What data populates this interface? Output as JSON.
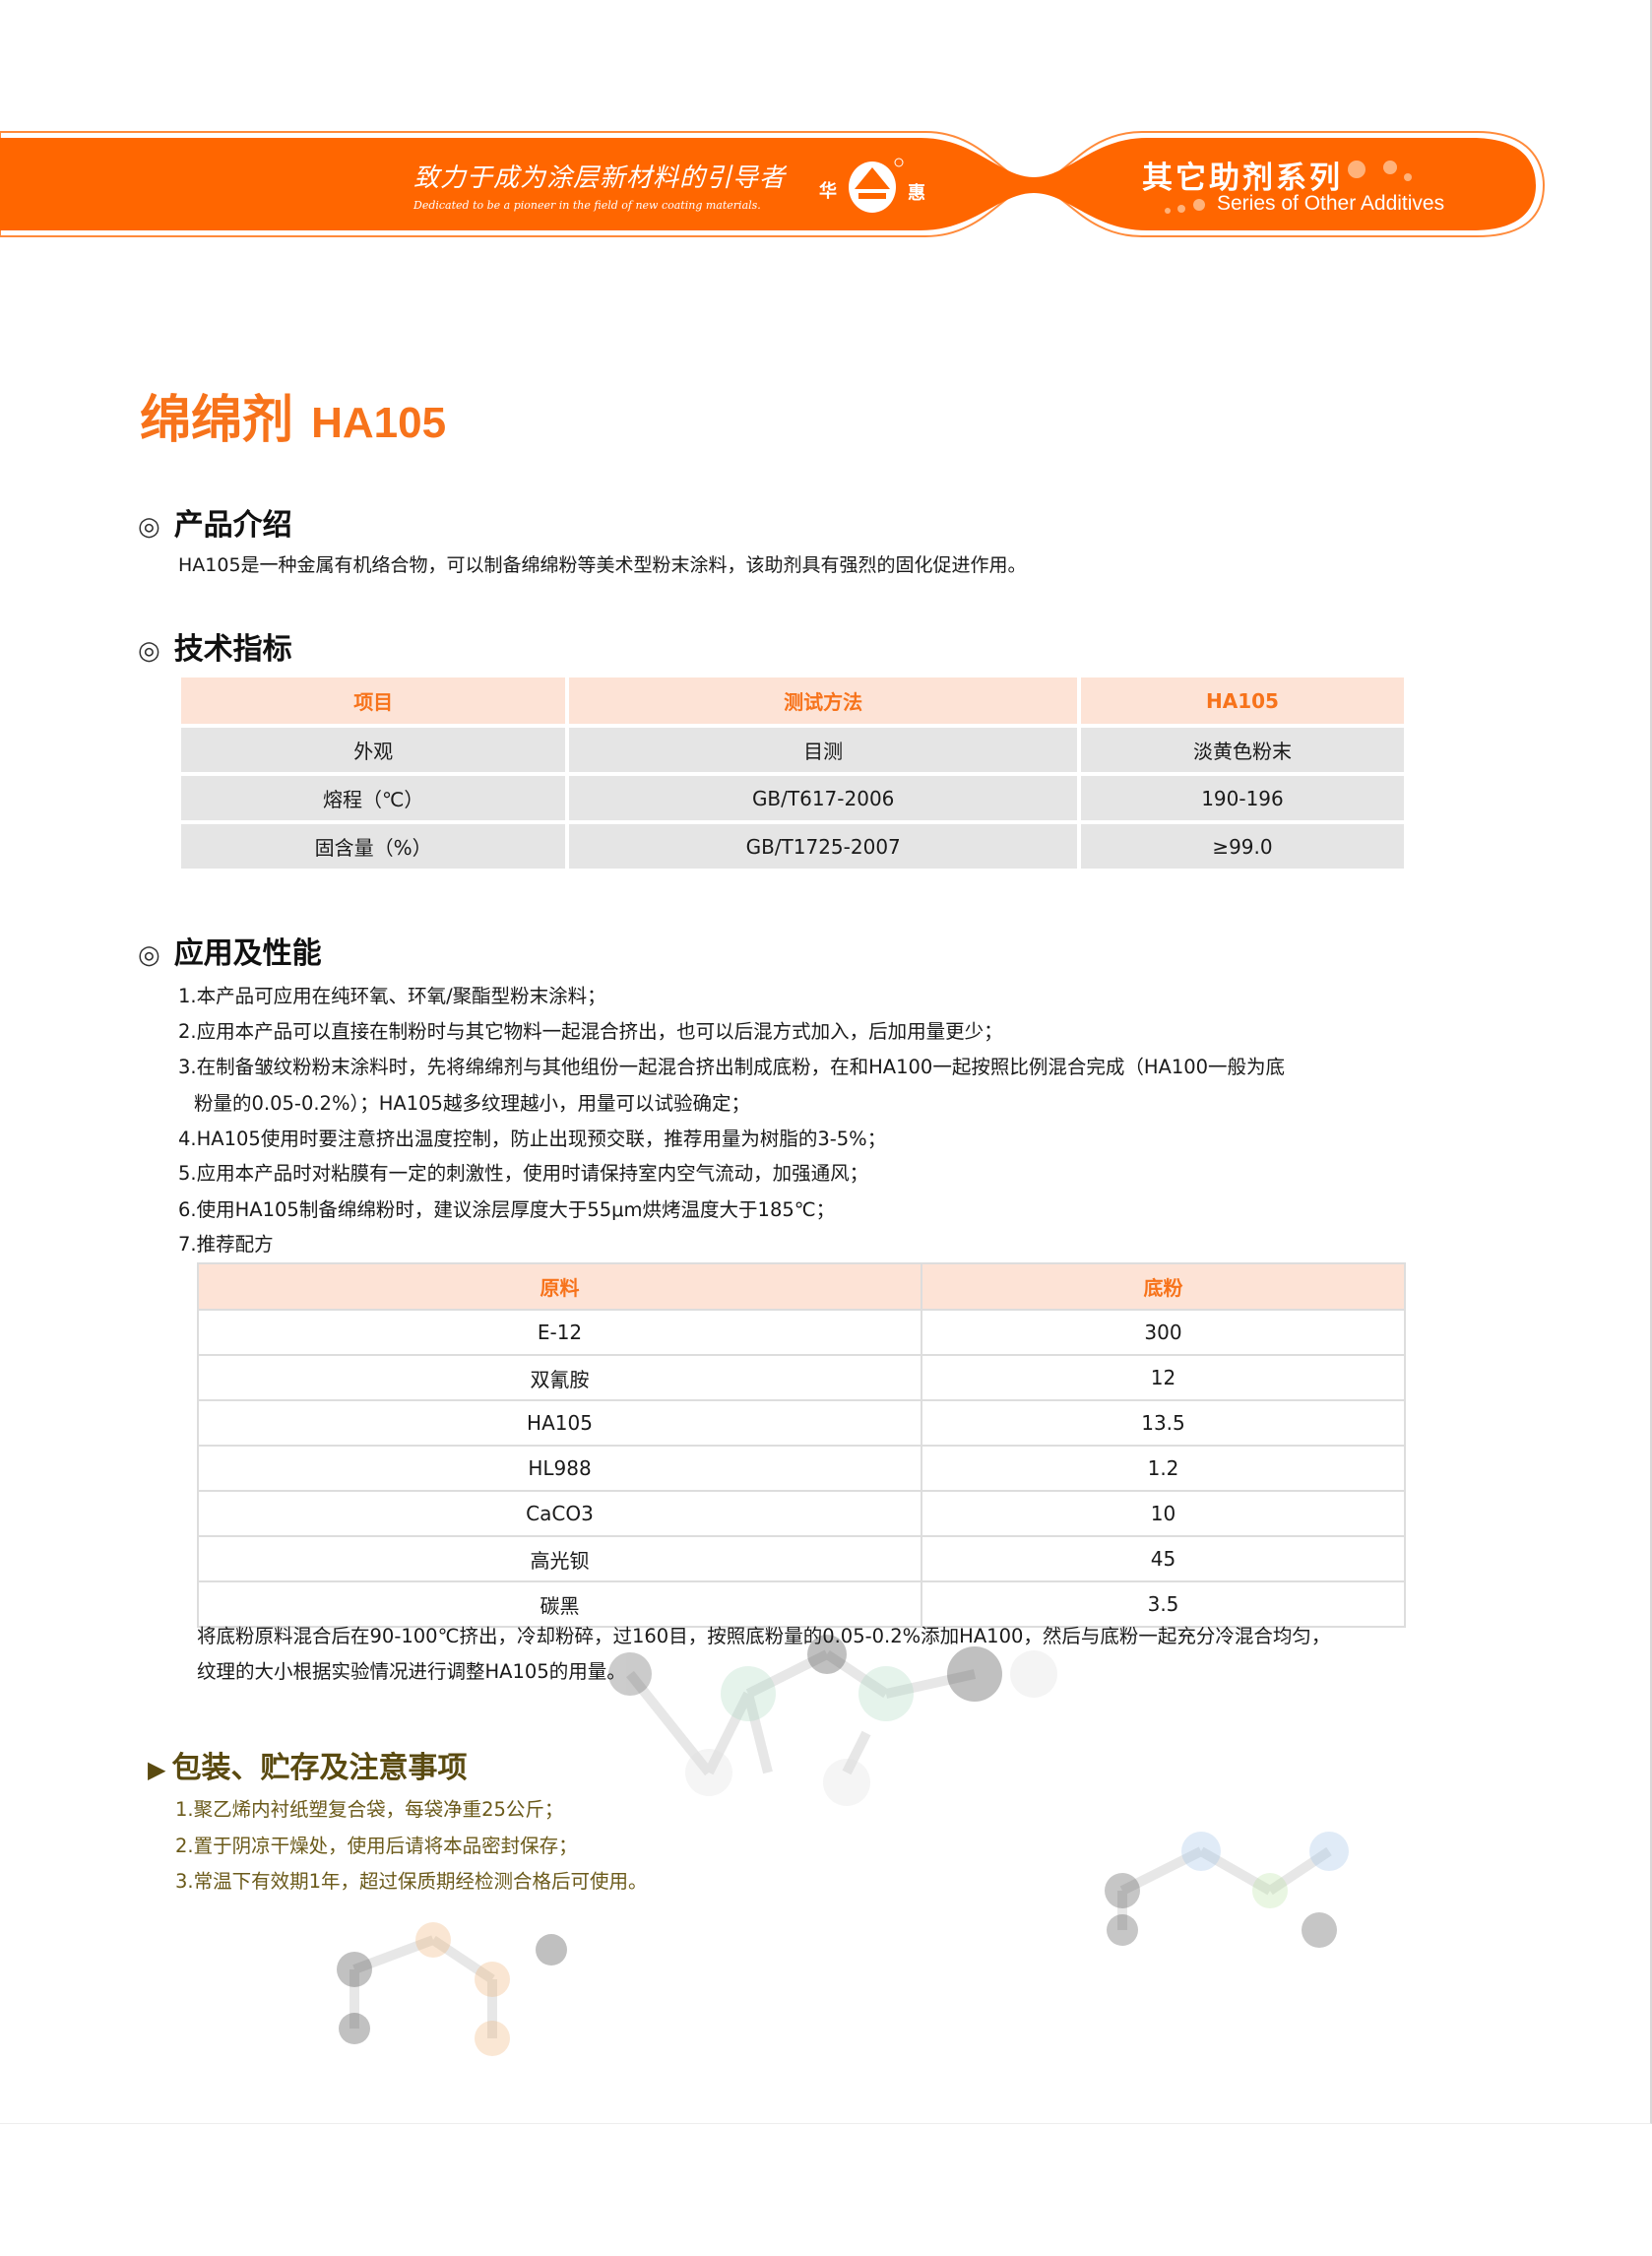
{
  "header": {
    "slogan_cn": "致力于成为涂层新材料的引导者",
    "slogan_en": "Dedicated to be a pioneer in the field of new coating materials.",
    "logo_text_left": "华",
    "logo_text_right": "惠",
    "series_cn": "其它助剂系列",
    "series_en": "Series of Other Additives",
    "brand_color": "#ff6600"
  },
  "title": {
    "cn": "绵绵剂",
    "code": "HA105"
  },
  "intro": {
    "heading": "产品介绍",
    "text": "HA105是一种金属有机络合物，可以制备绵绵粉等美术型粉末涂料，该助剂具有强烈的固化促进作用。"
  },
  "specs": {
    "heading": "技术指标",
    "columns": [
      "项目",
      "测试方法",
      "HA105"
    ],
    "rows": [
      [
        "外观",
        "目测",
        "淡黄色粉末"
      ],
      [
        "熔程（℃）",
        "GB/T617-2006",
        "190-196"
      ],
      [
        "固含量（%）",
        "GB/T1725-2007",
        "≥99.0"
      ]
    ]
  },
  "application": {
    "heading": "应用及性能",
    "items": [
      "1.本产品可应用在纯环氧、环氧/聚酯型粉末涂料；",
      "2.应用本产品可以直接在制粉时与其它物料一起混合挤出，也可以后混方式加入，后加用量更少；",
      "3.在制备皱纹粉粉末涂料时，先将绵绵剂与其他组份一起混合挤出制成底粉，在和HA100一起按照比例混合完成（HA100一般为底",
      "粉量的0.05-0.2%）；HA105越多纹理越小，用量可以试验确定；",
      "4.HA105使用时要注意挤出温度控制，防止出现预交联，推荐用量为树脂的3-5%；",
      "5.应用本产品时对粘膜有一定的刺激性，使用时请保持室内空气流动，加强通风；",
      "6.使用HA105制备绵绵粉时，建议涂层厚度大于55μm烘烤温度大于185℃；",
      "7.推荐配方"
    ],
    "formula": {
      "columns": [
        "原料",
        "底粉"
      ],
      "rows": [
        [
          "E-12",
          "300"
        ],
        [
          "双氰胺",
          "12"
        ],
        [
          "HA105",
          "13.5"
        ],
        [
          "HL988",
          "1.2"
        ],
        [
          "CaCO3",
          "10"
        ],
        [
          "高光钡",
          "45"
        ],
        [
          "碳黑",
          "3.5"
        ]
      ]
    },
    "note": [
      "将底粉原料混合后在90-100℃挤出，冷却粉碎，过160目，按照底粉量的0.05-0.2%添加HA100，然后与底粉一起充分冷混合均匀，",
      "纹理的大小根据实验情况进行调整HA105的用量。"
    ]
  },
  "packaging": {
    "heading": "包装、贮存及注意事项",
    "items": [
      "1.聚乙烯内衬纸塑复合袋，每袋净重25公斤；",
      "2.置于阴凉干燥处，使用后请将本品密封保存；",
      "3.常温下有效期1年，超过保质期经检测合格后可使用。"
    ]
  }
}
